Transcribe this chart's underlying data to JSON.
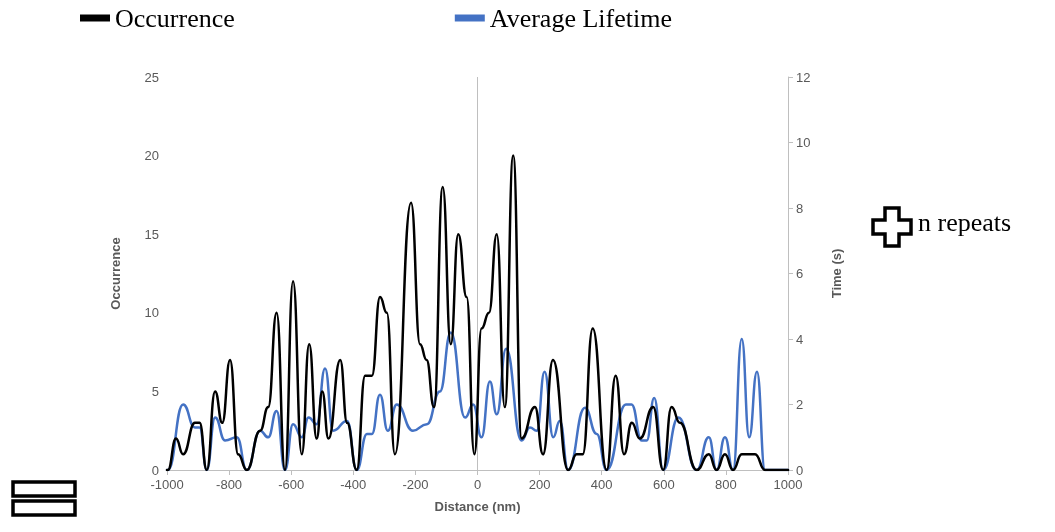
{
  "chart_data": {
    "type": "line",
    "xlabel": "Distance (nm)",
    "ylabel": "Occurrence",
    "y2label": "Time (s)",
    "annotations": [
      "n repeats"
    ],
    "xlim": [
      -1000,
      1000
    ],
    "xticks": [
      -1000,
      -800,
      -600,
      -400,
      -200,
      0,
      200,
      400,
      600,
      800,
      1000
    ],
    "ylim": [
      0,
      25
    ],
    "yticks": [
      0,
      5,
      10,
      15,
      20,
      25
    ],
    "y2lim": [
      0,
      12
    ],
    "y2ticks": [
      0,
      2,
      4,
      6,
      8,
      10,
      12
    ],
    "grid": false,
    "legend": "top left",
    "marker": "none",
    "line_style": "solid",
    "ref_lines": [
      {
        "axis": "x",
        "value": 0,
        "color": "#bfbfbf"
      }
    ],
    "series": [
      {
        "name": "Occurrence",
        "color": "#000000",
        "x": [
          -1000,
          -997,
          -971,
          -948,
          -910,
          -895,
          -872,
          -845,
          -822,
          -797,
          -771,
          -743,
          -700,
          -674,
          -647,
          -620,
          -594,
          -566,
          -542,
          -518,
          -500,
          -480,
          -442,
          -420,
          -389,
          -362,
          -340,
          -314,
          -292,
          -266,
          -214,
          -185,
          -164,
          -140,
          -112,
          -86,
          -62,
          -35,
          -10,
          13,
          37,
          62,
          88,
          115,
          142,
          185,
          211,
          243,
          292,
          319,
          339,
          371,
          416,
          445,
          472,
          497,
          523,
          566,
          598,
          625,
          652,
          706,
          745,
          770,
          797,
          823,
          851,
          894,
          926,
          1000
        ],
        "values": [
          0,
          0,
          2,
          1,
          3,
          3,
          0,
          5,
          3,
          7,
          1,
          0,
          2.5,
          4,
          10,
          0,
          12,
          1,
          8,
          2,
          5,
          2,
          7,
          3,
          0,
          6,
          6,
          11,
          10,
          1,
          17,
          8,
          7,
          4,
          18,
          8,
          15,
          11,
          1,
          9,
          10,
          15,
          4,
          20,
          2,
          4,
          1,
          7,
          0,
          1,
          1,
          9,
          0,
          6,
          1,
          3,
          2,
          4,
          0,
          4,
          3,
          0,
          1,
          0,
          1,
          0,
          1,
          1,
          0,
          0
        ]
      },
      {
        "name": "Average Lifetime",
        "color": "#4472c4",
        "axis": "y2",
        "x": [
          -1000,
          -997,
          -948,
          -910,
          -895,
          -872,
          -845,
          -813,
          -775,
          -743,
          -700,
          -674,
          -647,
          -620,
          -594,
          -566,
          -544,
          -518,
          -491,
          -465,
          -420,
          -389,
          -356,
          -340,
          -314,
          -289,
          -260,
          -208,
          -163,
          -121,
          -86,
          -40,
          -14,
          13,
          40,
          62,
          92,
          142,
          169,
          191,
          216,
          244,
          265,
          292,
          346,
          384,
          416,
          478,
          496,
          529,
          545,
          569,
          598,
          647,
          706,
          745,
          770,
          797,
          823,
          851,
          875,
          900,
          926,
          1000
        ],
        "values": [
          0,
          0,
          2,
          1.3,
          1.3,
          0,
          1.6,
          0.9,
          1,
          0,
          1.2,
          1,
          1.8,
          0,
          1.4,
          1,
          1.6,
          1.4,
          3.1,
          1.2,
          1.5,
          0,
          1.1,
          1.1,
          2.3,
          1.2,
          2,
          1.2,
          1.4,
          2.4,
          4.2,
          1.6,
          2,
          1,
          2.7,
          1.7,
          3.7,
          0.9,
          1.3,
          1.2,
          3,
          1,
          1.5,
          0,
          1.9,
          1.1,
          0,
          2,
          2,
          0.9,
          0.9,
          2.2,
          0,
          1.6,
          0,
          1,
          0,
          1,
          0,
          4,
          1,
          3,
          0,
          0
        ]
      }
    ]
  }
}
